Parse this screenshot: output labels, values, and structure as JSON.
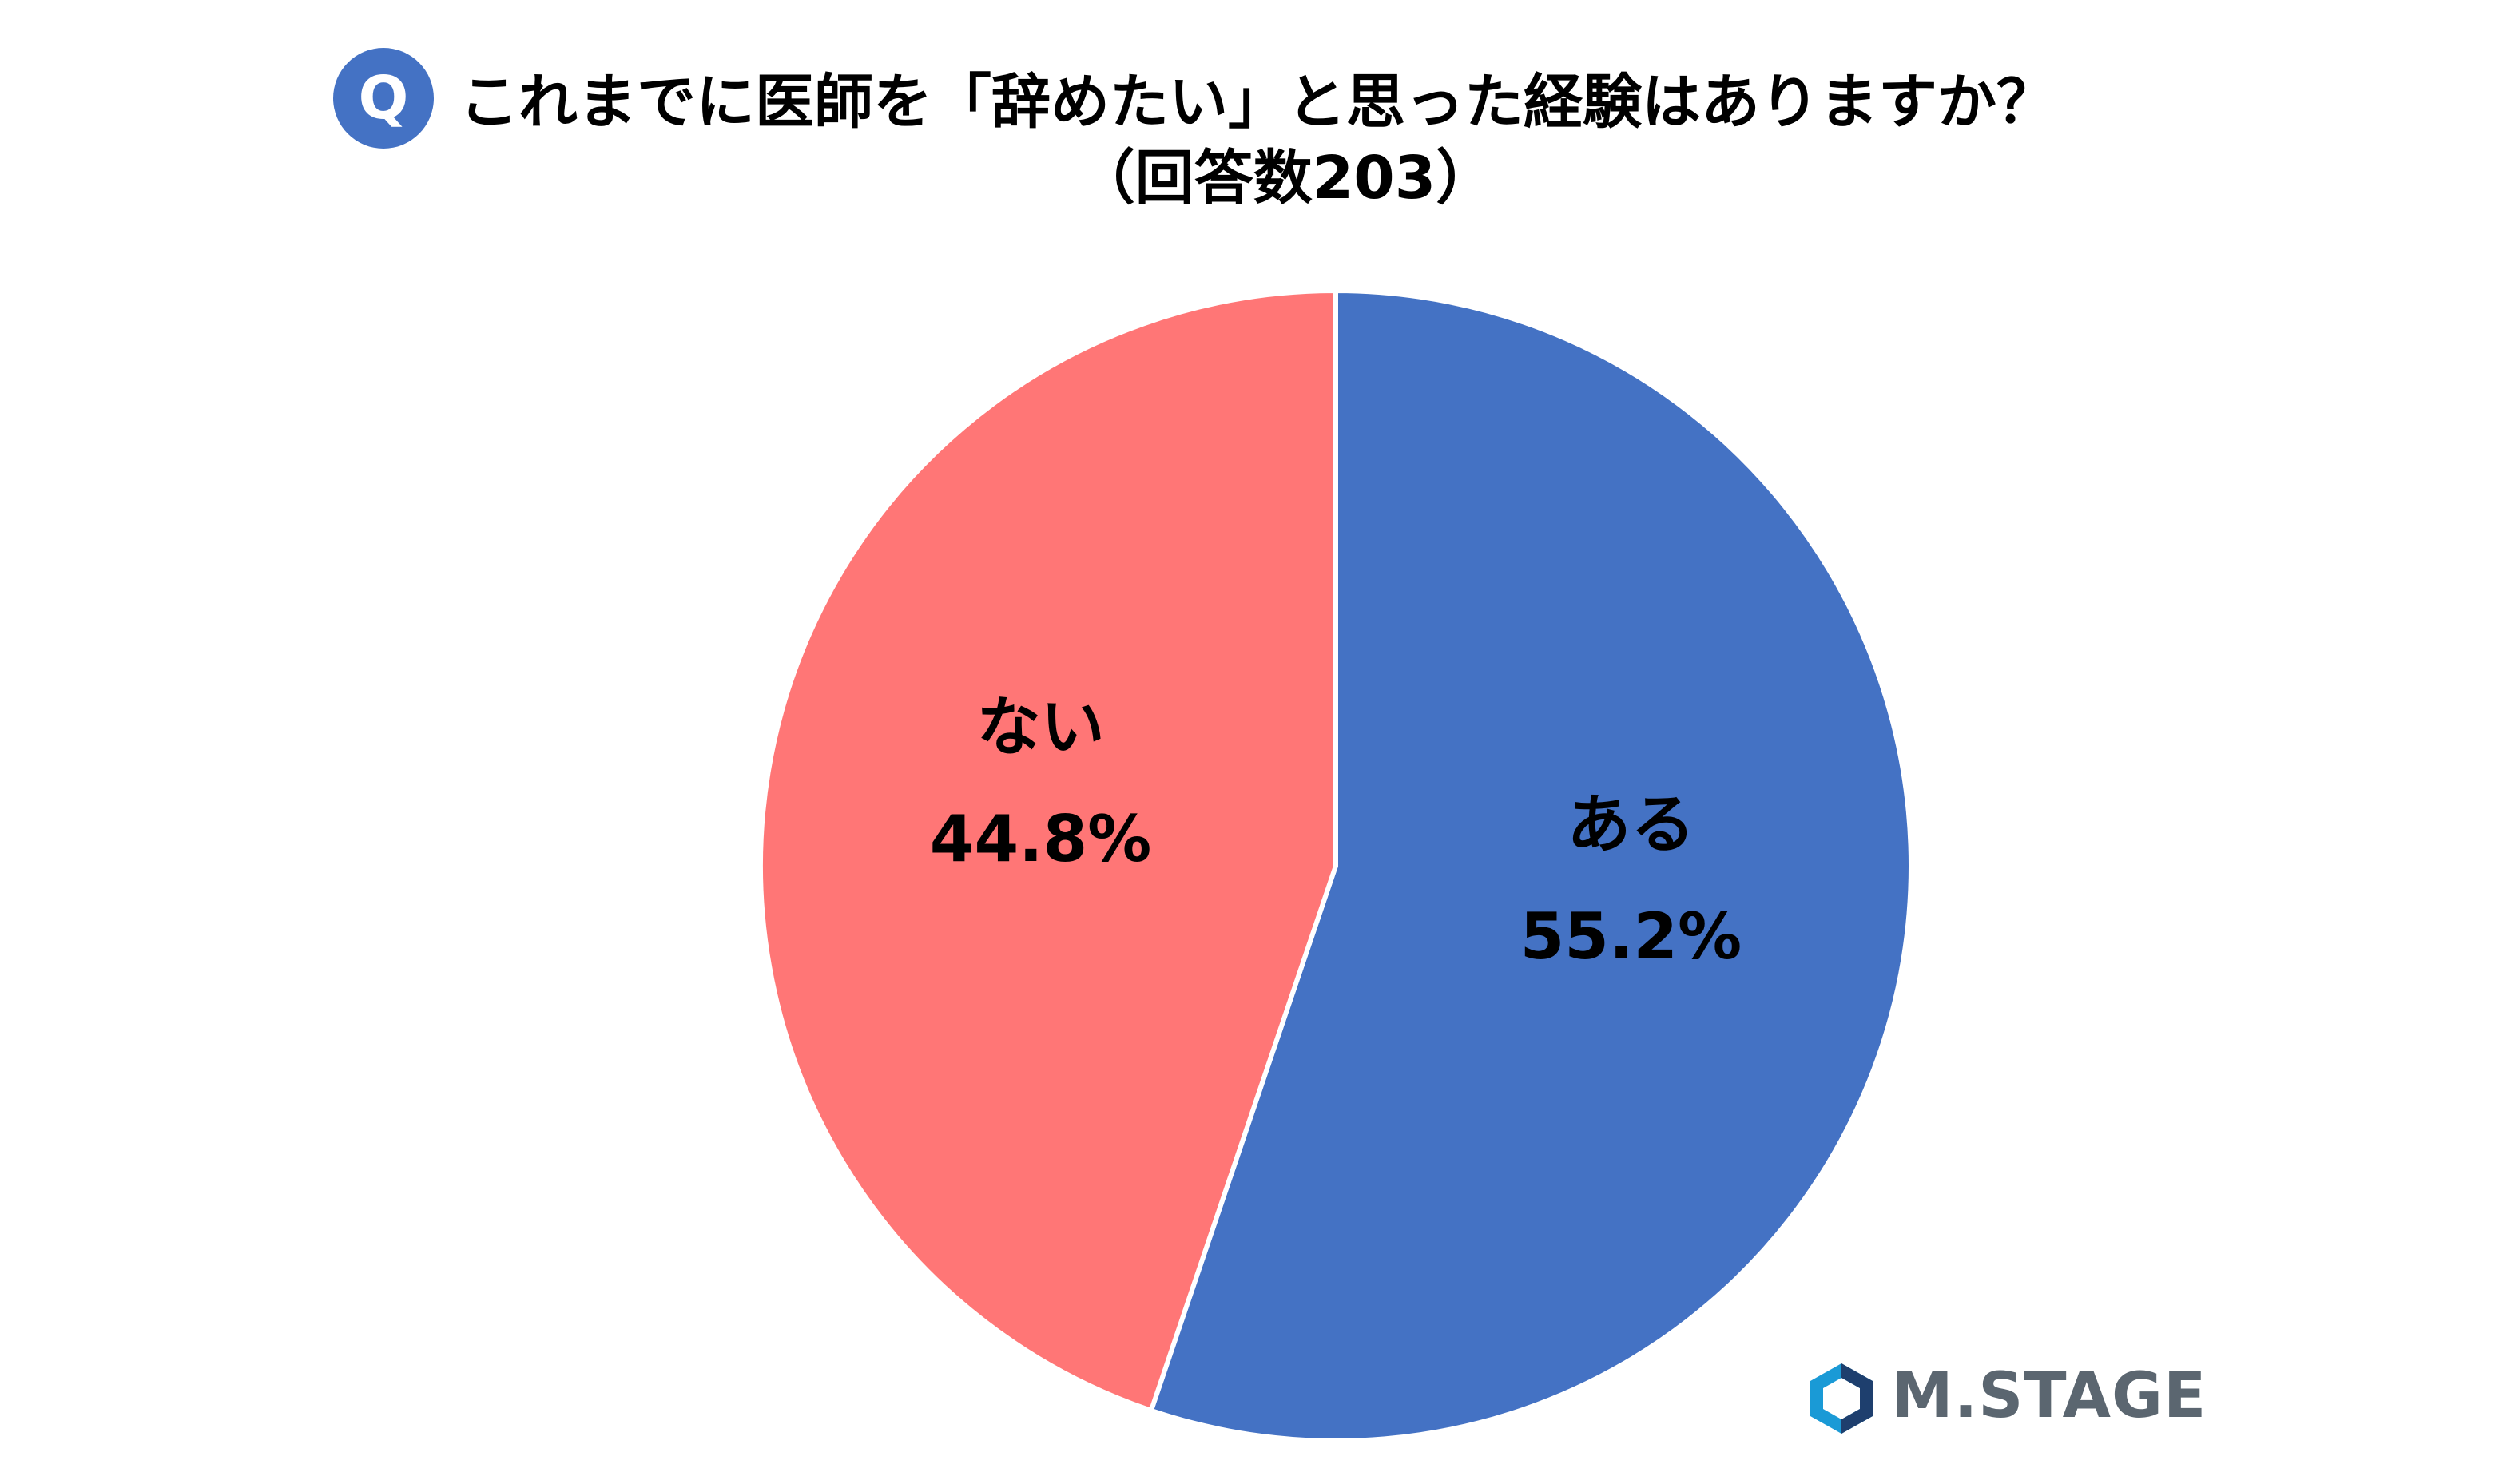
{
  "title": {
    "badge": "Q",
    "line1": "これまでに医師を「辞めたい」と思った経験はありますか？",
    "line2": "（回答数203）"
  },
  "colors": {
    "aru": "#4472c4",
    "nai": "#ff7676",
    "badge": "#4472c4",
    "logo_text": "#5b6670",
    "logo_mark_outer": "#1a9ad6",
    "logo_mark_inner": "#1e3f6e"
  },
  "logo": {
    "text": "M.STAGE",
    "icon": "m-stage-logo-icon"
  },
  "chart_data": {
    "type": "pie",
    "title": "これまでに医師を「辞めたい」と思った経験はありますか？（回答数203）",
    "slices": [
      {
        "label": "ある",
        "value": 55.2,
        "value_label": "55.2%",
        "color": "#4472c4"
      },
      {
        "label": "ない",
        "value": 44.8,
        "value_label": "44.8%",
        "color": "#ff7676"
      }
    ],
    "start_angle": "12 o'clock",
    "direction": "clockwise",
    "legend": "none",
    "data_labels": "inside"
  }
}
